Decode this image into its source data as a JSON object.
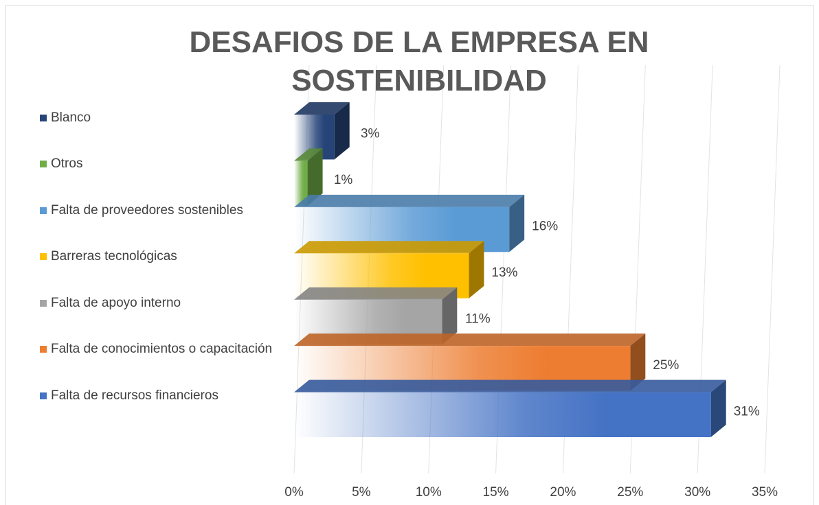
{
  "chart_data": {
    "type": "bar3d_horizontal",
    "title": "DESAFIOS DE LA EMPRESA EN SOSTENIBILIDAD",
    "categories": [
      "Blanco",
      "Otros",
      "Falta de proveedores sostenibles",
      "Barreras tecnológicas",
      "Falta de apoyo interno",
      "Falta de conocimientos o capacitación",
      "Falta de recursos financieros"
    ],
    "values": [
      3,
      1,
      16,
      13,
      11,
      25,
      31
    ],
    "value_labels": [
      "3%",
      "1%",
      "16%",
      "13%",
      "11%",
      "25%",
      "31%"
    ],
    "colors": [
      "#264478",
      "#70ad47",
      "#5b9bd5",
      "#ffc000",
      "#a5a5a5",
      "#ed7d31",
      "#4472c4"
    ],
    "xlim": [
      0,
      35
    ],
    "xticks": [
      {
        "value": 0,
        "label": "0%"
      },
      {
        "value": 5,
        "label": "5%"
      },
      {
        "value": 10,
        "label": "10%"
      },
      {
        "value": 15,
        "label": "15%"
      },
      {
        "value": 20,
        "label": "20%"
      },
      {
        "value": 25,
        "label": "25%"
      },
      {
        "value": 30,
        "label": "30%"
      },
      {
        "value": 35,
        "label": "35%"
      }
    ],
    "grid": true,
    "legend": "left"
  }
}
